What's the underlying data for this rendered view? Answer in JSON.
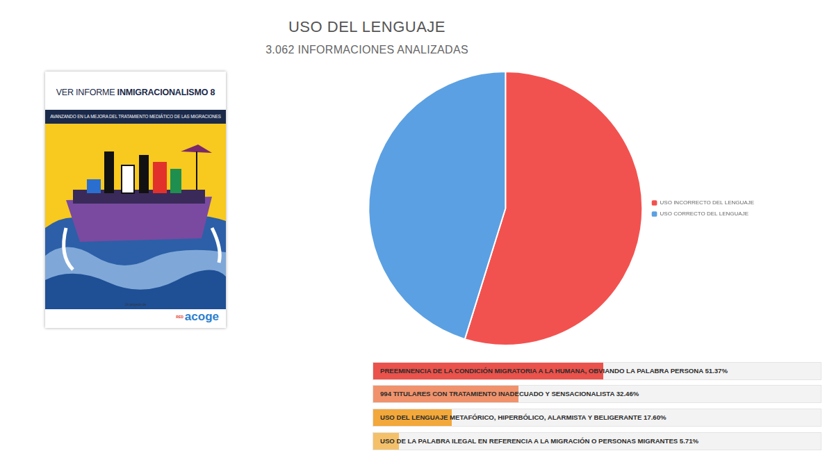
{
  "chart_data": {
    "type": "pie",
    "title": "USO DEL LENGUAJE",
    "subtitle": "3.062 INFORMACIONES ANALIZADAS",
    "categories": [
      "USO INCORRECTO DEL LENGUAJE",
      "USO CORRECTO DEL LENGUAJE"
    ],
    "values": [
      54.8,
      45.2
    ],
    "colors": [
      "#f2524f",
      "#5ba0e2"
    ],
    "legend": "right"
  },
  "cover": {
    "title": "VER INFORME",
    "title_bold": "INMIGRACIONALISMO 8",
    "subtitle": "AVANZANDO EN LA MEJORA DEL TRATAMIENTO MEDIÁTICO DE LAS MIGRACIONES",
    "credit": "Un proyecto de",
    "logo_prefix": "RED",
    "logo": "acoge"
  },
  "indicators": [
    {
      "label": "PREEMINENCIA DE LA CONDICIÓN MIGRATORIA A LA HUMANA, OBVIANDO LA PALABRA PERSONA",
      "value": 51.37,
      "value_label": "51.37%",
      "color": "#ea524b"
    },
    {
      "label": "994 TITULARES CON TRATAMIENTO INADECUADO Y SENSACIONALISTA",
      "value": 32.46,
      "value_label": "32.46%",
      "color": "#f0936d"
    },
    {
      "label": "USO DEL LENGUAJE METAFÓRICO, HIPERBÓLICO, ALARMISTA Y BELIGERANTE",
      "value": 17.6,
      "value_label": "17.60%",
      "color": "#f2a83a"
    },
    {
      "label": "USO DE LA PALABRA ILEGAL EN REFERENCIA A LA MIGRACIÓN O PERSONAS MIGRANTES",
      "value": 5.71,
      "value_label": "5.71%",
      "color": "#f4c16a"
    }
  ]
}
